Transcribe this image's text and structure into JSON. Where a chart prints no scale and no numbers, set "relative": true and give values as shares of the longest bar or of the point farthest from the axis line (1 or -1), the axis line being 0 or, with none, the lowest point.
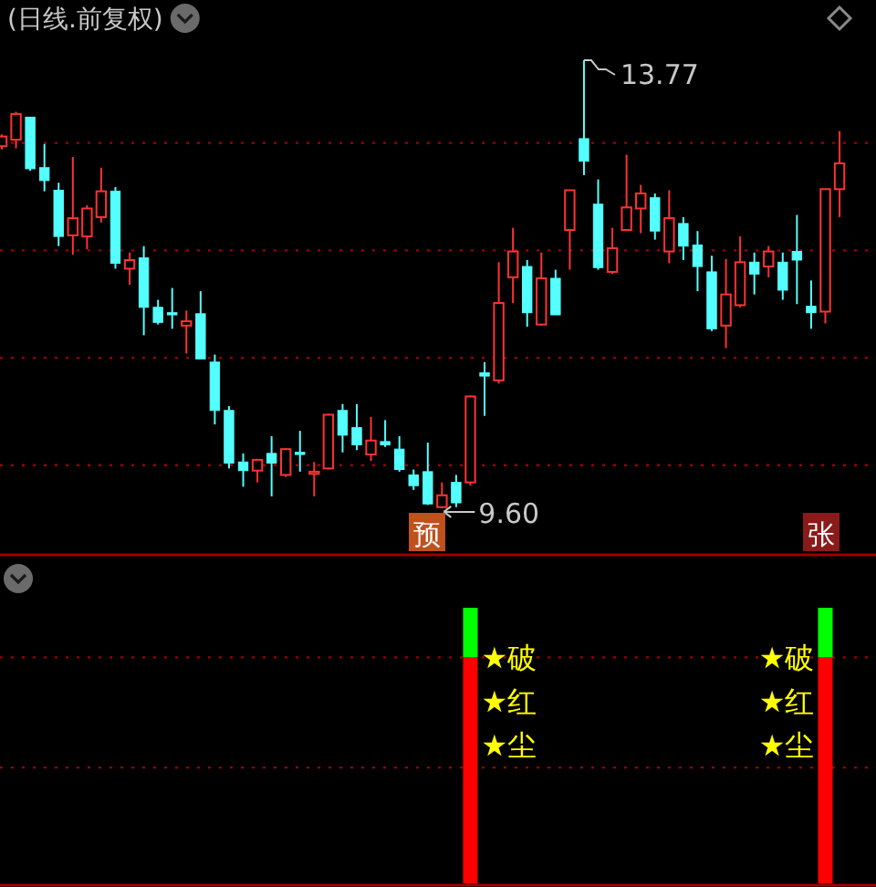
{
  "chart_data": [
    {
      "type": "candlestick",
      "title": "(日线.前复权)",
      "categories": [
        null,
        null,
        null,
        null,
        null,
        null,
        null,
        null,
        null,
        null,
        null,
        null,
        null,
        null,
        null,
        null,
        null,
        null,
        null,
        null,
        null,
        null,
        null,
        null,
        null,
        null,
        null,
        null,
        null,
        null,
        null,
        null,
        null,
        null,
        null,
        null,
        null,
        null,
        null,
        null,
        null,
        null,
        null,
        null,
        null,
        null,
        null,
        null,
        null,
        null,
        null,
        null,
        null,
        null,
        null,
        null,
        null,
        null,
        null,
        null
      ],
      "ohlc": [
        [
          12.97,
          13.08,
          12.94,
          13.06
        ],
        [
          13.03,
          13.29,
          12.95,
          13.27
        ],
        [
          13.24,
          13.24,
          12.74,
          12.76
        ],
        [
          12.77,
          12.99,
          12.55,
          12.65
        ],
        [
          12.56,
          12.63,
          12.04,
          12.13
        ],
        [
          12.14,
          12.87,
          11.96,
          12.3
        ],
        [
          12.13,
          12.42,
          12.01,
          12.39
        ],
        [
          12.31,
          12.77,
          12.26,
          12.55
        ],
        [
          12.55,
          12.59,
          11.83,
          11.88
        ],
        [
          11.83,
          11.98,
          11.68,
          11.91
        ],
        [
          11.93,
          12.04,
          11.21,
          11.47
        ],
        [
          11.47,
          11.54,
          11.31,
          11.33
        ],
        [
          11.42,
          11.65,
          11.27,
          11.4
        ],
        [
          11.3,
          11.44,
          11.04,
          11.34
        ],
        [
          11.41,
          11.62,
          10.99,
          10.99
        ],
        [
          10.96,
          11.03,
          10.38,
          10.51
        ],
        [
          10.51,
          10.55,
          9.97,
          10.02
        ],
        [
          10.03,
          10.11,
          9.8,
          9.95
        ],
        [
          9.95,
          10.06,
          9.84,
          10.05
        ],
        [
          10.11,
          10.27,
          9.71,
          10.02
        ],
        [
          9.91,
          10.16,
          9.89,
          10.15
        ],
        [
          10.12,
          10.32,
          9.94,
          10.1
        ],
        [
          9.92,
          10.03,
          9.71,
          9.94
        ],
        [
          9.97,
          10.48,
          9.96,
          10.47
        ],
        [
          10.51,
          10.57,
          10.12,
          10.28
        ],
        [
          10.35,
          10.57,
          10.14,
          10.19
        ],
        [
          10.1,
          10.45,
          10.04,
          10.23
        ],
        [
          10.22,
          10.42,
          10.17,
          10.19
        ],
        [
          10.15,
          10.27,
          9.94,
          9.96
        ],
        [
          9.91,
          9.96,
          9.77,
          9.81
        ],
        [
          9.94,
          10.21,
          9.63,
          9.64
        ],
        [
          9.61,
          9.84,
          9.6,
          9.72
        ],
        [
          9.84,
          9.91,
          9.61,
          9.65
        ],
        [
          9.84,
          10.65,
          9.81,
          10.64
        ],
        [
          10.86,
          10.96,
          10.46,
          10.83
        ],
        [
          10.79,
          11.89,
          10.76,
          11.51
        ],
        [
          11.75,
          12.21,
          11.51,
          11.99
        ],
        [
          11.85,
          11.91,
          11.29,
          11.42
        ],
        [
          11.31,
          11.98,
          11.3,
          11.74
        ],
        [
          11.74,
          11.82,
          11.4,
          11.4
        ],
        [
          12.19,
          12.56,
          11.82,
          12.56
        ],
        [
          13.04,
          13.77,
          12.7,
          12.83
        ],
        [
          12.43,
          12.66,
          11.82,
          11.84
        ],
        [
          11.8,
          12.21,
          11.78,
          12.02
        ],
        [
          12.19,
          12.89,
          12.19,
          12.4
        ],
        [
          12.39,
          12.61,
          12.16,
          12.53
        ],
        [
          12.49,
          12.53,
          12.1,
          12.18
        ],
        [
          11.99,
          12.56,
          11.88,
          12.3
        ],
        [
          12.25,
          12.31,
          11.91,
          12.04
        ],
        [
          12.05,
          12.18,
          11.62,
          11.85
        ],
        [
          11.8,
          11.95,
          11.25,
          11.27
        ],
        [
          11.3,
          11.92,
          11.09,
          11.59
        ],
        [
          11.49,
          12.13,
          11.47,
          11.89
        ],
        [
          11.89,
          11.98,
          11.59,
          11.78
        ],
        [
          11.85,
          12.04,
          11.75,
          11.99
        ],
        [
          11.89,
          11.98,
          11.54,
          11.63
        ],
        [
          11.99,
          12.33,
          11.5,
          11.91
        ],
        [
          11.48,
          11.72,
          11.27,
          11.42
        ],
        [
          11.43,
          12.57,
          11.32,
          12.57
        ],
        [
          12.57,
          13.11,
          12.31,
          12.81
        ]
      ],
      "colors": [
        "#ff3232",
        "#ff3232",
        "#54ffff",
        "#54ffff",
        "#54ffff",
        "#ff3232",
        "#ff3232",
        "#ff3232",
        "#54ffff",
        "#ff3232",
        "#54ffff",
        "#54ffff",
        "#54ffff",
        "#ff3232",
        "#54ffff",
        "#54ffff",
        "#54ffff",
        "#54ffff",
        "#ff3232",
        "#54ffff",
        "#ff3232",
        "#54ffff",
        "#ff3232",
        "#ff3232",
        "#54ffff",
        "#54ffff",
        "#ff3232",
        "#54ffff",
        "#54ffff",
        "#54ffff",
        "#54ffff",
        "#ff3232",
        "#54ffff",
        "#ff3232",
        "#54ffff",
        "#ff3232",
        "#ff3232",
        "#54ffff",
        "#ff3232",
        "#54ffff",
        "#ff3232",
        "#54ffff",
        "#54ffff",
        "#ff3232",
        "#ff3232",
        "#ff3232",
        "#54ffff",
        "#ff3232",
        "#54ffff",
        "#54ffff",
        "#54ffff",
        "#ff3232",
        "#ff3232",
        "#54ffff",
        "#ff3232",
        "#54ffff",
        "#54ffff",
        "#54ffff",
        "#ff3232",
        "#ff3232"
      ],
      "grid": "y",
      "yticks": [
        {
          "value": 13,
          "label": null
        },
        {
          "value": 12,
          "label": null
        },
        {
          "value": 11,
          "label": null
        },
        {
          "value": 10,
          "label": null
        }
      ],
      "annotations": [
        "13.77",
        "9.60",
        "预",
        "张"
      ]
    },
    {
      "type": "bar",
      "stacked": true,
      "relative": true,
      "categories": [
        null,
        null,
        null,
        null,
        null,
        null,
        null,
        null,
        null,
        null,
        null,
        null,
        null,
        null,
        null,
        null,
        null,
        null,
        null,
        null,
        null,
        null,
        null,
        null,
        null,
        null,
        null,
        null,
        null,
        null,
        null,
        null,
        null,
        null,
        null,
        null,
        null,
        null,
        null,
        null,
        null,
        null,
        null,
        null,
        null,
        null,
        null,
        null,
        null,
        null,
        null,
        null,
        null,
        null,
        null,
        null,
        null,
        null,
        null,
        null
      ],
      "series": [
        {
          "color": "#ff0000",
          "values": [
            null,
            null,
            null,
            null,
            null,
            null,
            null,
            null,
            null,
            null,
            null,
            null,
            null,
            null,
            null,
            null,
            null,
            null,
            null,
            null,
            null,
            null,
            null,
            null,
            null,
            null,
            null,
            null,
            null,
            null,
            null,
            null,
            null,
            0.82,
            null,
            null,
            null,
            null,
            null,
            null,
            null,
            null,
            null,
            null,
            null,
            null,
            null,
            null,
            null,
            null,
            null,
            null,
            null,
            null,
            null,
            null,
            null,
            null,
            0.82,
            null
          ]
        },
        {
          "color": "#00ff00",
          "values": [
            null,
            null,
            null,
            null,
            null,
            null,
            null,
            null,
            null,
            null,
            null,
            null,
            null,
            null,
            null,
            null,
            null,
            null,
            null,
            null,
            null,
            null,
            null,
            null,
            null,
            null,
            null,
            null,
            null,
            null,
            null,
            null,
            null,
            0.18,
            null,
            null,
            null,
            null,
            null,
            null,
            null,
            null,
            null,
            null,
            null,
            null,
            null,
            null,
            null,
            null,
            null,
            null,
            null,
            null,
            null,
            null,
            null,
            null,
            0.18,
            null
          ]
        }
      ],
      "ref_lines": [
        {
          "axis": "y",
          "value": 0.82,
          "color": "#a00000",
          "line_style": "dotted"
        },
        {
          "axis": "y",
          "value": 0.42,
          "color": "#a00000",
          "line_style": "dotted"
        }
      ],
      "annotations": [
        "★破",
        "★红",
        "★尘",
        "★破",
        "★红",
        "★尘"
      ]
    }
  ]
}
